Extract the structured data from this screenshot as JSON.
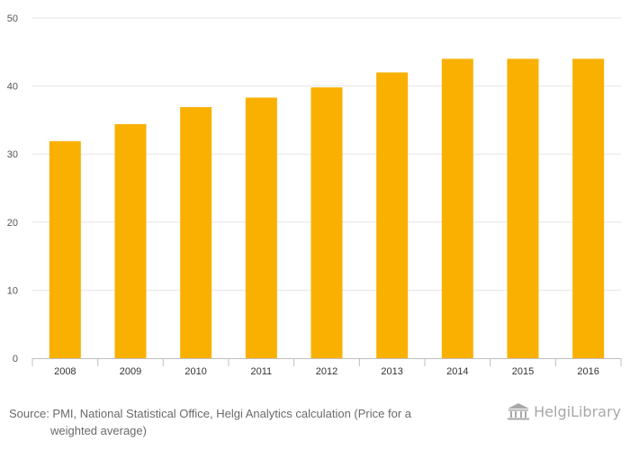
{
  "colors": {
    "bar": "#F9B000",
    "grid": "#E6E6E6",
    "brand": "#A8A8A8"
  },
  "chart_data": {
    "type": "bar",
    "title": "",
    "xlabel": "",
    "ylabel": "",
    "categories": [
      "2008",
      "2009",
      "2010",
      "2011",
      "2012",
      "2013",
      "2014",
      "2015",
      "2016"
    ],
    "values": [
      31.9,
      34.4,
      36.9,
      38.3,
      39.8,
      42.0,
      44.0,
      44.0,
      44.0
    ],
    "ylim": [
      0,
      50
    ],
    "yticks": [
      "0",
      "10",
      "20",
      "30",
      "40",
      "50"
    ],
    "grid": true,
    "legend": "none"
  },
  "footer": {
    "source_line1": "Source: PMI, National Statistical Office, Helgi Analytics calculation (Price for a",
    "source_line2": "weighted average)",
    "brand": "HelgiLibrary",
    "brand_icon": "library-building-icon"
  }
}
